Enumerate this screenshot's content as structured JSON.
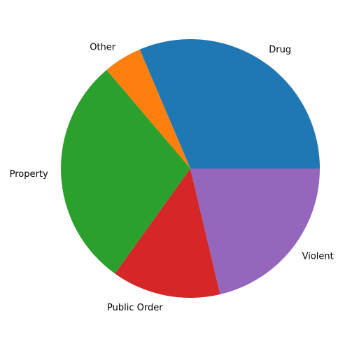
{
  "chart_data": {
    "type": "pie",
    "title": "",
    "categories": [
      "Drug",
      "Other",
      "Property",
      "Public Order",
      "Violent"
    ],
    "values": [
      31.4,
      4.8,
      28.9,
      13.6,
      21.3
    ],
    "colors": [
      "#1f77b4",
      "#ff7f0e",
      "#2ca02c",
      "#d62728",
      "#9467bd"
    ],
    "start_angle_deg": 0,
    "direction": "counterclockwise"
  }
}
